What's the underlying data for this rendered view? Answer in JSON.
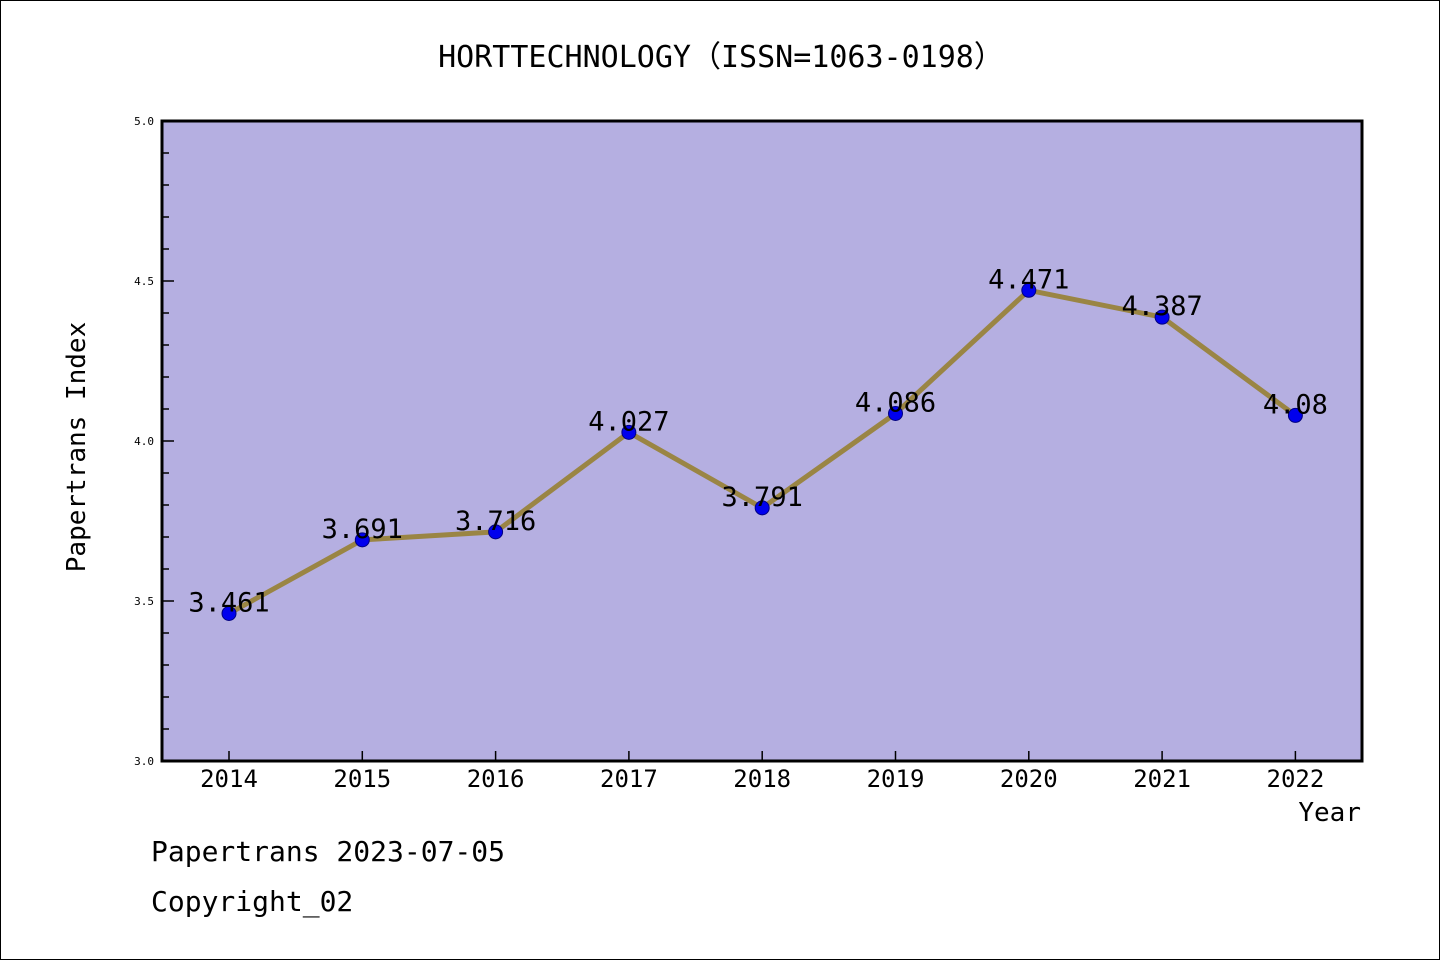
{
  "chart_data": {
    "type": "line",
    "title": "HORTTECHNOLOGY（ISSN=1063-0198）",
    "xlabel": "Year",
    "ylabel": "Papertrans Index",
    "categories": [
      "2014",
      "2015",
      "2016",
      "2017",
      "2018",
      "2019",
      "2020",
      "2021",
      "2022"
    ],
    "series": [
      {
        "values": [
          3.461,
          3.691,
          3.716,
          4.027,
          3.791,
          4.086,
          4.471,
          4.387,
          4.08
        ],
        "labels": [
          "3.461",
          "3.691",
          "3.716",
          "4.027",
          "3.791",
          "4.086",
          "4.471",
          "4.387",
          "4.08"
        ]
      }
    ],
    "ylim": [
      3.0,
      5.0
    ],
    "y_ticks": [
      "3.0",
      "3.5",
      "4.0",
      "4.5",
      "5.0"
    ],
    "grid": false,
    "colors": {
      "plot_background": "#b5afe1",
      "line": "#9a8544",
      "marker": "#0000ee",
      "axis": "#000000"
    }
  },
  "footer": {
    "source": "Papertrans 2023-07-05",
    "copyright": "Copyright_02"
  }
}
